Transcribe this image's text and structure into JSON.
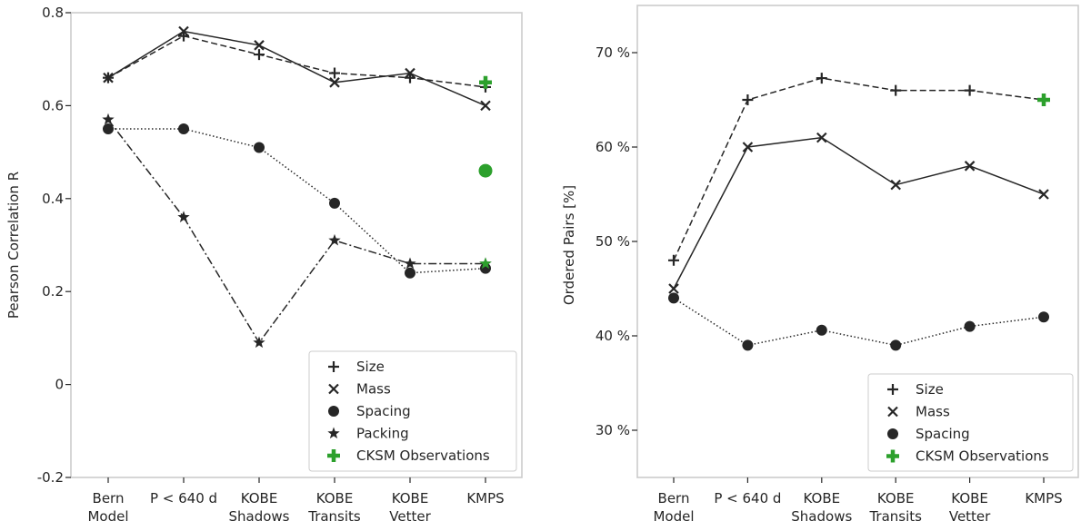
{
  "colors": {
    "series": "#262626",
    "observation": "#2ca02c",
    "frame": "#cccccc"
  },
  "chart_data": [
    {
      "type": "line",
      "categories": [
        "Bern\nModel",
        "P < 640 d",
        "KOBE\nShadows",
        "KOBE\nTransits",
        "KOBE\nVetter",
        "KMPS"
      ],
      "xlabel": "",
      "ylabel": "Pearson Correlation R",
      "ylim": [
        -0.2,
        0.8
      ],
      "yticks": [
        -0.2,
        0,
        0.2,
        0.4,
        0.6,
        0.8
      ],
      "yticklabels": [
        "-0.2",
        "0",
        "0.2",
        "0.4",
        "0.6",
        "0.8"
      ],
      "series": [
        {
          "name": "Size",
          "marker": "plus",
          "linestyle": "dashed",
          "values": [
            0.66,
            0.75,
            0.71,
            0.67,
            0.66,
            0.64
          ]
        },
        {
          "name": "Mass",
          "marker": "x",
          "linestyle": "solid",
          "values": [
            0.66,
            0.76,
            0.73,
            0.65,
            0.67,
            0.6
          ]
        },
        {
          "name": "Spacing",
          "marker": "circle",
          "linestyle": "dotted",
          "values": [
            0.55,
            0.55,
            0.51,
            0.39,
            0.24,
            0.25
          ]
        },
        {
          "name": "Packing",
          "marker": "star",
          "linestyle": "dashdot",
          "values": [
            0.57,
            0.36,
            0.09,
            0.31,
            0.26,
            0.26
          ]
        }
      ],
      "observations": {
        "name": "CKSM Observations",
        "category_index": 5,
        "points": [
          {
            "marker": "plus",
            "value": 0.65
          },
          {
            "marker": "circle",
            "value": 0.46
          },
          {
            "marker": "star",
            "value": 0.26
          }
        ]
      },
      "legend": {
        "position": "lower-right",
        "entries": [
          {
            "label": "Size",
            "marker": "plus"
          },
          {
            "label": "Mass",
            "marker": "x"
          },
          {
            "label": "Spacing",
            "marker": "circle"
          },
          {
            "label": "Packing",
            "marker": "star"
          },
          {
            "label": "CKSM Observations",
            "marker": "plus-green"
          }
        ]
      }
    },
    {
      "type": "line",
      "categories": [
        "Bern\nModel",
        "P < 640 d",
        "KOBE\nShadows",
        "KOBE\nTransits",
        "KOBE\nVetter",
        "KMPS"
      ],
      "xlabel": "",
      "ylabel": "Ordered Pairs [%]",
      "ylim": [
        25,
        75
      ],
      "yticks": [
        30,
        40,
        50,
        60,
        70
      ],
      "yticklabels": [
        "30 %",
        "40 %",
        "50 %",
        "60 %",
        "70 %"
      ],
      "series": [
        {
          "name": "Size",
          "marker": "plus",
          "linestyle": "dashed",
          "values": [
            48,
            65,
            67.3,
            66,
            66,
            65
          ]
        },
        {
          "name": "Mass",
          "marker": "x",
          "linestyle": "solid",
          "values": [
            45,
            60,
            61,
            56,
            58,
            55
          ]
        },
        {
          "name": "Spacing",
          "marker": "circle",
          "linestyle": "dotted",
          "values": [
            44,
            39,
            40.6,
            39,
            41,
            42
          ]
        }
      ],
      "observations": {
        "name": "CKSM Observations",
        "category_index": 5,
        "points": [
          {
            "marker": "plus",
            "value": 65
          }
        ]
      },
      "legend": {
        "position": "lower-right",
        "entries": [
          {
            "label": "Size",
            "marker": "plus"
          },
          {
            "label": "Mass",
            "marker": "x"
          },
          {
            "label": "Spacing",
            "marker": "circle"
          },
          {
            "label": "CKSM Observations",
            "marker": "plus-green"
          }
        ]
      }
    }
  ]
}
